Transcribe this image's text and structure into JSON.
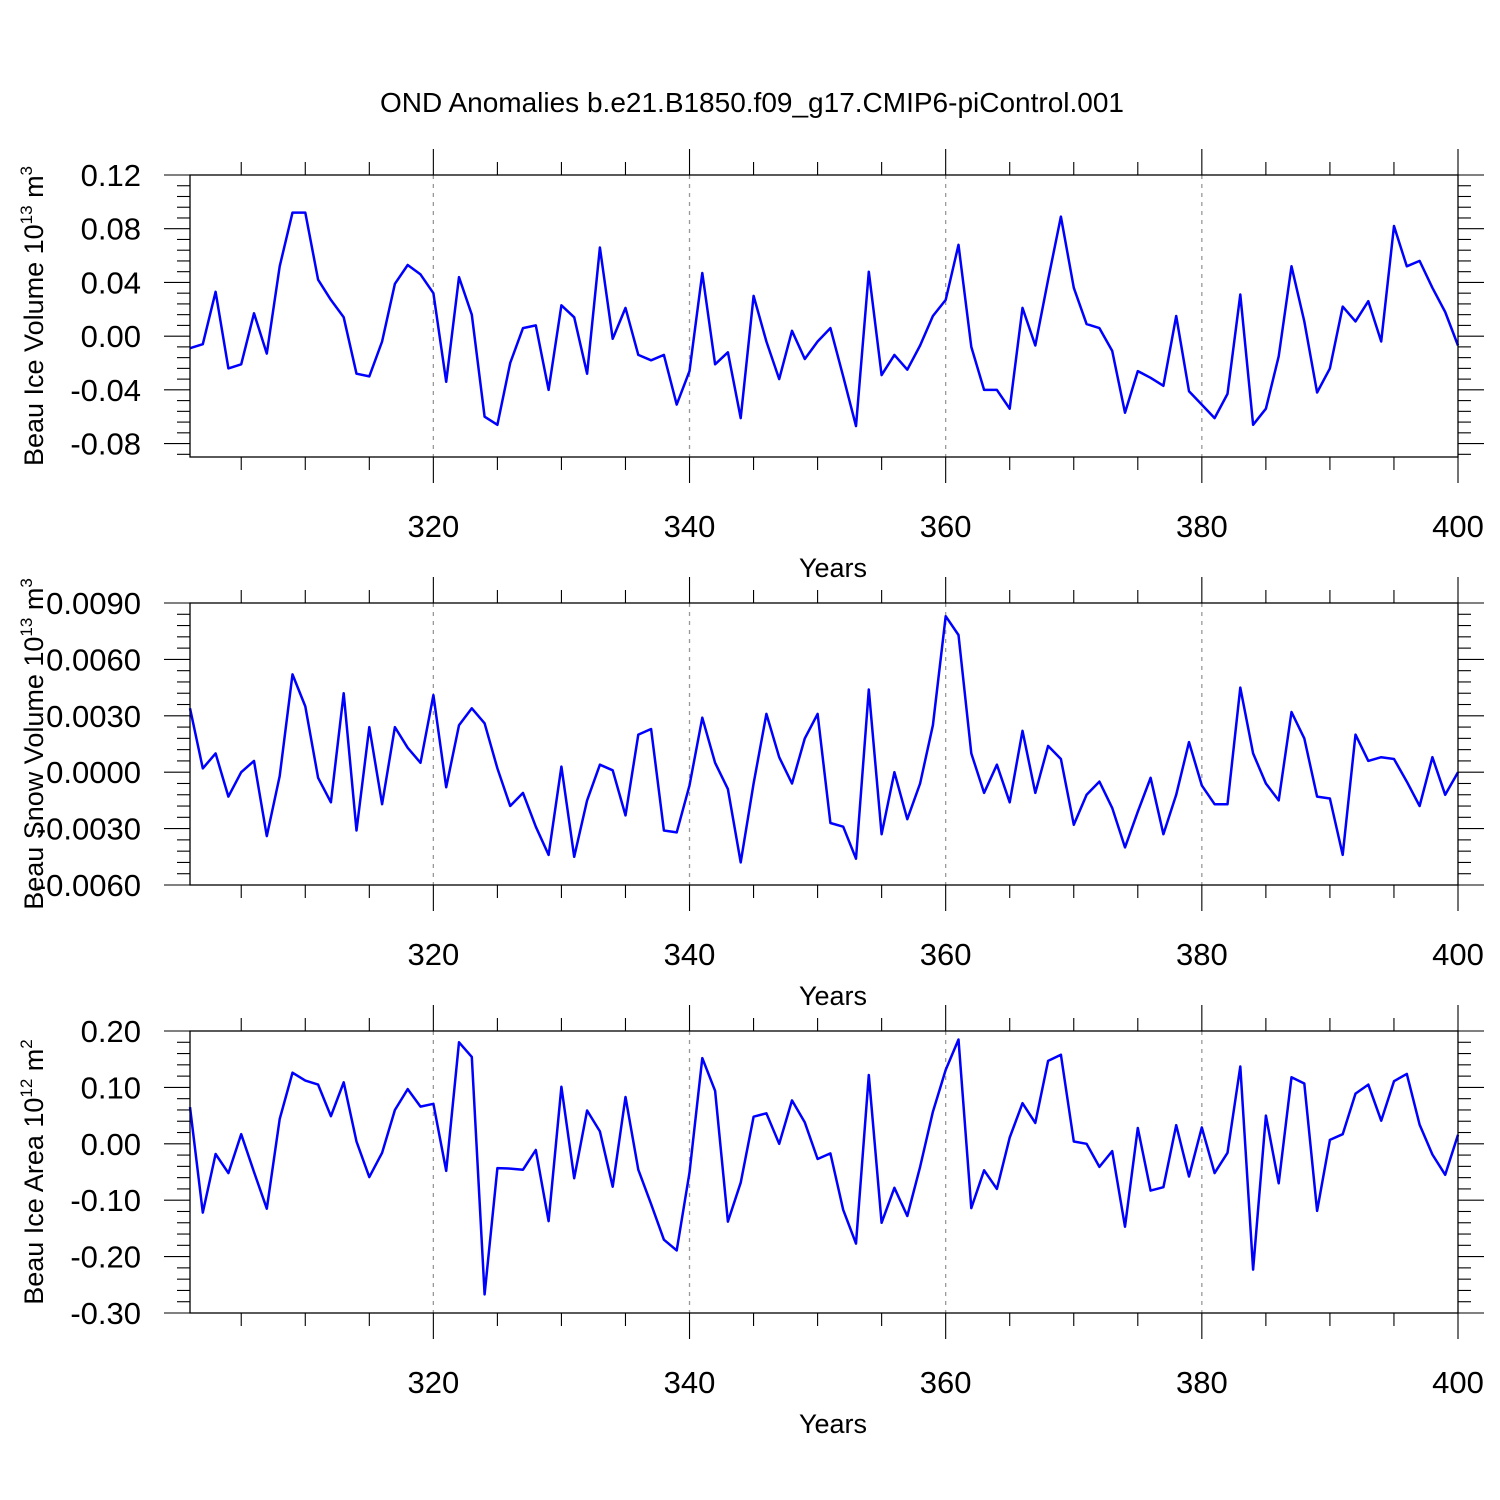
{
  "title": "OND Anomalies b.e21.B1850.f09_g17.CMIP6-piControl.001",
  "chart_data": [
    {
      "type": "line",
      "ylabel_main": "Beau Ice Volume 10",
      "ylabel_exp": "13",
      "ylabel_unit": " m",
      "ylabel_unit_exp": "3",
      "xlabel": "Years",
      "xlim": [
        301,
        400
      ],
      "ylim": [
        -0.09,
        0.12
      ],
      "xticks": [
        320,
        340,
        360,
        380,
        400
      ],
      "xtick_labels": [
        "320",
        "340",
        "360",
        "380",
        "400"
      ],
      "yticks": [
        -0.08,
        -0.04,
        0.0,
        0.04,
        0.08,
        0.12
      ],
      "ytick_labels": [
        "-0.08",
        "-0.04",
        "0.00",
        "0.04",
        "0.08",
        "0.12"
      ],
      "grid_x": [
        320,
        340,
        360,
        380
      ],
      "series": [
        {
          "name": "Beau Ice Volume",
          "color": "#0000ff",
          "x_start": 301,
          "values": [
            -0.009,
            -0.006,
            0.033,
            -0.024,
            -0.021,
            0.017,
            -0.013,
            0.052,
            0.092,
            0.092,
            0.042,
            0.027,
            0.014,
            -0.028,
            -0.03,
            -0.004,
            0.039,
            0.053,
            0.046,
            0.032,
            -0.034,
            0.044,
            0.016,
            -0.06,
            -0.066,
            -0.02,
            0.006,
            0.008,
            -0.04,
            0.023,
            0.014,
            -0.028,
            0.066,
            -0.002,
            0.021,
            -0.014,
            -0.018,
            -0.014,
            -0.051,
            -0.026,
            0.047,
            -0.021,
            -0.012,
            -0.061,
            0.03,
            -0.004,
            -0.032,
            0.004,
            -0.017,
            -0.004,
            0.006,
            -0.03,
            -0.067,
            0.048,
            -0.029,
            -0.014,
            -0.025,
            -0.007,
            0.015,
            0.027,
            0.068,
            -0.008,
            -0.04,
            -0.04,
            -0.054,
            0.021,
            -0.007,
            0.042,
            0.089,
            0.036,
            0.009,
            0.006,
            -0.011,
            -0.057,
            -0.026,
            -0.031,
            -0.037,
            0.015,
            -0.041,
            -0.051,
            -0.061,
            -0.043,
            0.031,
            -0.066,
            -0.054,
            -0.015,
            0.052,
            0.011,
            -0.042,
            -0.024,
            0.022,
            0.011,
            0.026,
            -0.004,
            0.082,
            0.052,
            0.056,
            0.036,
            0.018,
            -0.007
          ]
        }
      ]
    },
    {
      "type": "line",
      "ylabel_main": "Beau Snow Volume 10",
      "ylabel_exp": "13",
      "ylabel_unit": " m",
      "ylabel_unit_exp": "3",
      "xlabel": "Years",
      "xlim": [
        301,
        400
      ],
      "ylim": [
        -0.006,
        0.009
      ],
      "xticks": [
        320,
        340,
        360,
        380,
        400
      ],
      "xtick_labels": [
        "320",
        "340",
        "360",
        "380",
        "400"
      ],
      "yticks": [
        -0.006,
        -0.003,
        0.0,
        0.003,
        0.006,
        0.009
      ],
      "ytick_labels": [
        "-0.0060",
        "-0.0030",
        "0.0000",
        "0.0030",
        "0.0060",
        "0.0090"
      ],
      "grid_x": [
        320,
        340,
        360,
        380
      ],
      "series": [
        {
          "name": "Beau Snow Volume",
          "color": "#0000ff",
          "x_start": 301,
          "values": [
            0.0034,
            0.0002,
            0.001,
            -0.0013,
            0.0,
            0.0006,
            -0.0034,
            -0.0002,
            0.0052,
            0.0035,
            -0.0003,
            -0.0016,
            0.0042,
            -0.0031,
            0.0024,
            -0.0017,
            0.0024,
            0.0013,
            0.0005,
            0.0041,
            -0.0008,
            0.0025,
            0.0034,
            0.0026,
            0.0002,
            -0.0018,
            -0.0011,
            -0.0029,
            -0.0044,
            0.0003,
            -0.0045,
            -0.0015,
            0.0004,
            0.0001,
            -0.0023,
            0.002,
            0.0023,
            -0.0031,
            -0.0032,
            -0.0007,
            0.0029,
            0.0005,
            -0.0009,
            -0.0048,
            -0.0006,
            0.0031,
            0.0008,
            -0.0006,
            0.0018,
            0.0031,
            -0.0027,
            -0.0029,
            -0.0046,
            0.0044,
            -0.0033,
            0.0,
            -0.0025,
            -0.0006,
            0.0025,
            0.0083,
            0.0073,
            0.001,
            -0.0011,
            0.0004,
            -0.0016,
            0.0022,
            -0.0011,
            0.0014,
            0.0007,
            -0.0028,
            -0.0012,
            -0.0005,
            -0.0019,
            -0.004,
            -0.0021,
            -0.0003,
            -0.0033,
            -0.0012,
            0.0016,
            -0.0007,
            -0.0017,
            -0.0017,
            0.0045,
            0.001,
            -0.0006,
            -0.0015,
            0.0032,
            0.0018,
            -0.0013,
            -0.0014,
            -0.0044,
            0.002,
            0.0006,
            0.0008,
            0.0007,
            -0.0005,
            -0.0018,
            0.0008,
            -0.0012,
            0.0
          ]
        }
      ]
    },
    {
      "type": "line",
      "ylabel_main": "Beau Ice Area 10",
      "ylabel_exp": "12",
      "ylabel_unit": " m",
      "ylabel_unit_exp": "2",
      "xlabel": "Years",
      "xlim": [
        301,
        400
      ],
      "ylim": [
        -0.3,
        0.2
      ],
      "xticks": [
        320,
        340,
        360,
        380,
        400
      ],
      "xtick_labels": [
        "320",
        "340",
        "360",
        "380",
        "400"
      ],
      "yticks": [
        -0.3,
        -0.2,
        -0.1,
        0.0,
        0.1,
        0.2
      ],
      "ytick_labels": [
        "-0.30",
        "-0.20",
        "-0.10",
        "0.00",
        "0.10",
        "0.20"
      ],
      "grid_x": [
        320,
        340,
        360,
        380
      ],
      "series": [
        {
          "name": "Beau Ice Area",
          "color": "#0000ff",
          "x_start": 301,
          "values": [
            0.065,
            -0.122,
            -0.018,
            -0.052,
            0.017,
            -0.05,
            -0.115,
            0.044,
            0.126,
            0.112,
            0.105,
            0.049,
            0.109,
            0.004,
            -0.059,
            -0.016,
            0.06,
            0.097,
            0.066,
            0.071,
            -0.048,
            0.18,
            0.154,
            -0.267,
            -0.043,
            -0.044,
            -0.046,
            -0.011,
            -0.137,
            0.101,
            -0.061,
            0.059,
            0.022,
            -0.076,
            0.083,
            -0.046,
            -0.107,
            -0.17,
            -0.189,
            -0.051,
            0.152,
            0.094,
            -0.138,
            -0.069,
            0.048,
            0.054,
            0.0,
            0.077,
            0.038,
            -0.027,
            -0.017,
            -0.117,
            -0.177,
            0.122,
            -0.14,
            -0.078,
            -0.128,
            -0.041,
            0.057,
            0.131,
            0.185,
            -0.114,
            -0.047,
            -0.08,
            0.011,
            0.072,
            0.037,
            0.147,
            0.158,
            0.004,
            0.0,
            -0.041,
            -0.013,
            -0.147,
            0.028,
            -0.083,
            -0.077,
            0.033,
            -0.058,
            0.029,
            -0.052,
            -0.016,
            0.137,
            -0.223,
            0.05,
            -0.07,
            0.118,
            0.107,
            -0.119,
            0.007,
            0.017,
            0.089,
            0.105,
            0.041,
            0.111,
            0.124,
            0.034,
            -0.019,
            -0.055,
            0.016
          ]
        }
      ]
    }
  ]
}
